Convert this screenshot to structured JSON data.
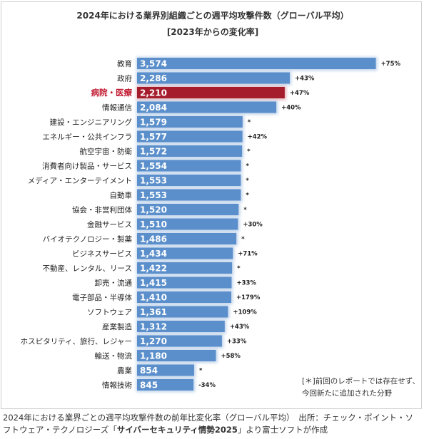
{
  "chart_data": {
    "type": "bar",
    "orientation": "horizontal",
    "title": "2024年における業界別組織ごとの週平均攻撃件数（グローバル平均）",
    "subtitle": "[2023年からの変化率]",
    "categories": [
      "教育",
      "政府",
      "病院・医療",
      "情報通信",
      "建設・エンジニアリング",
      "エネルギー・公共インフラ",
      "航空宇宙・防衛",
      "消費者向け製品・サービス",
      "メディア・エンターテイメント",
      "自動車",
      "協会・非営利団体",
      "金融サービス",
      "バイオテクノロジー・製薬",
      "ビジネスサービス",
      "不動産、レンタル、リース",
      "卸売・流通",
      "電子部品・半導体",
      "ソフトウェア",
      "産業製造",
      "ホスピタリティ、旅行、レジャー",
      "輸送・物流",
      "農業",
      "情報技術"
    ],
    "values": [
      3574,
      2286,
      2210,
      2084,
      1579,
      1577,
      1572,
      1554,
      1553,
      1553,
      1520,
      1510,
      1486,
      1434,
      1422,
      1415,
      1410,
      1361,
      1312,
      1270,
      1180,
      854,
      845
    ],
    "value_labels": [
      "3,574",
      "2,286",
      "2,210",
      "2,084",
      "1,579",
      "1,577",
      "1,572",
      "1,554",
      "1,553",
      "1,553",
      "1,520",
      "1,510",
      "1,486",
      "1,434",
      "1,422",
      "1,415",
      "1,410",
      "1,361",
      "1,312",
      "1,270",
      "1,180",
      "854",
      "845"
    ],
    "changes": [
      "+75%",
      "+43%",
      "+47%",
      "+40%",
      "*",
      "+42%",
      "*",
      "*",
      "*",
      "*",
      "*",
      "+30%",
      "*",
      "+71%",
      "*",
      "+33%",
      "+179%",
      "+109%",
      "+43%",
      "+33%",
      "+58%",
      "*",
      "-34%"
    ],
    "highlight_index": 2,
    "xlim": [
      0,
      3600
    ],
    "grid": false,
    "colors": {
      "bar": "#5b8fcb",
      "highlight": "#a51d2d",
      "highlight_label": "#c0182f"
    }
  },
  "note": {
    "line1": "[＊]前回のレポートでは存在せず、",
    "line2": "今回新たに追加された分野"
  },
  "caption": {
    "text": "2024年における業界ごとの週平均攻撃件数の前年比変化率（グローバル平均）　出所：チェック・ポイント・ソフトウェア・テクノロジーズ「",
    "bold": "サイバーセキュリティ情勢2025",
    "tail": "」より富士ソフトが作成"
  }
}
